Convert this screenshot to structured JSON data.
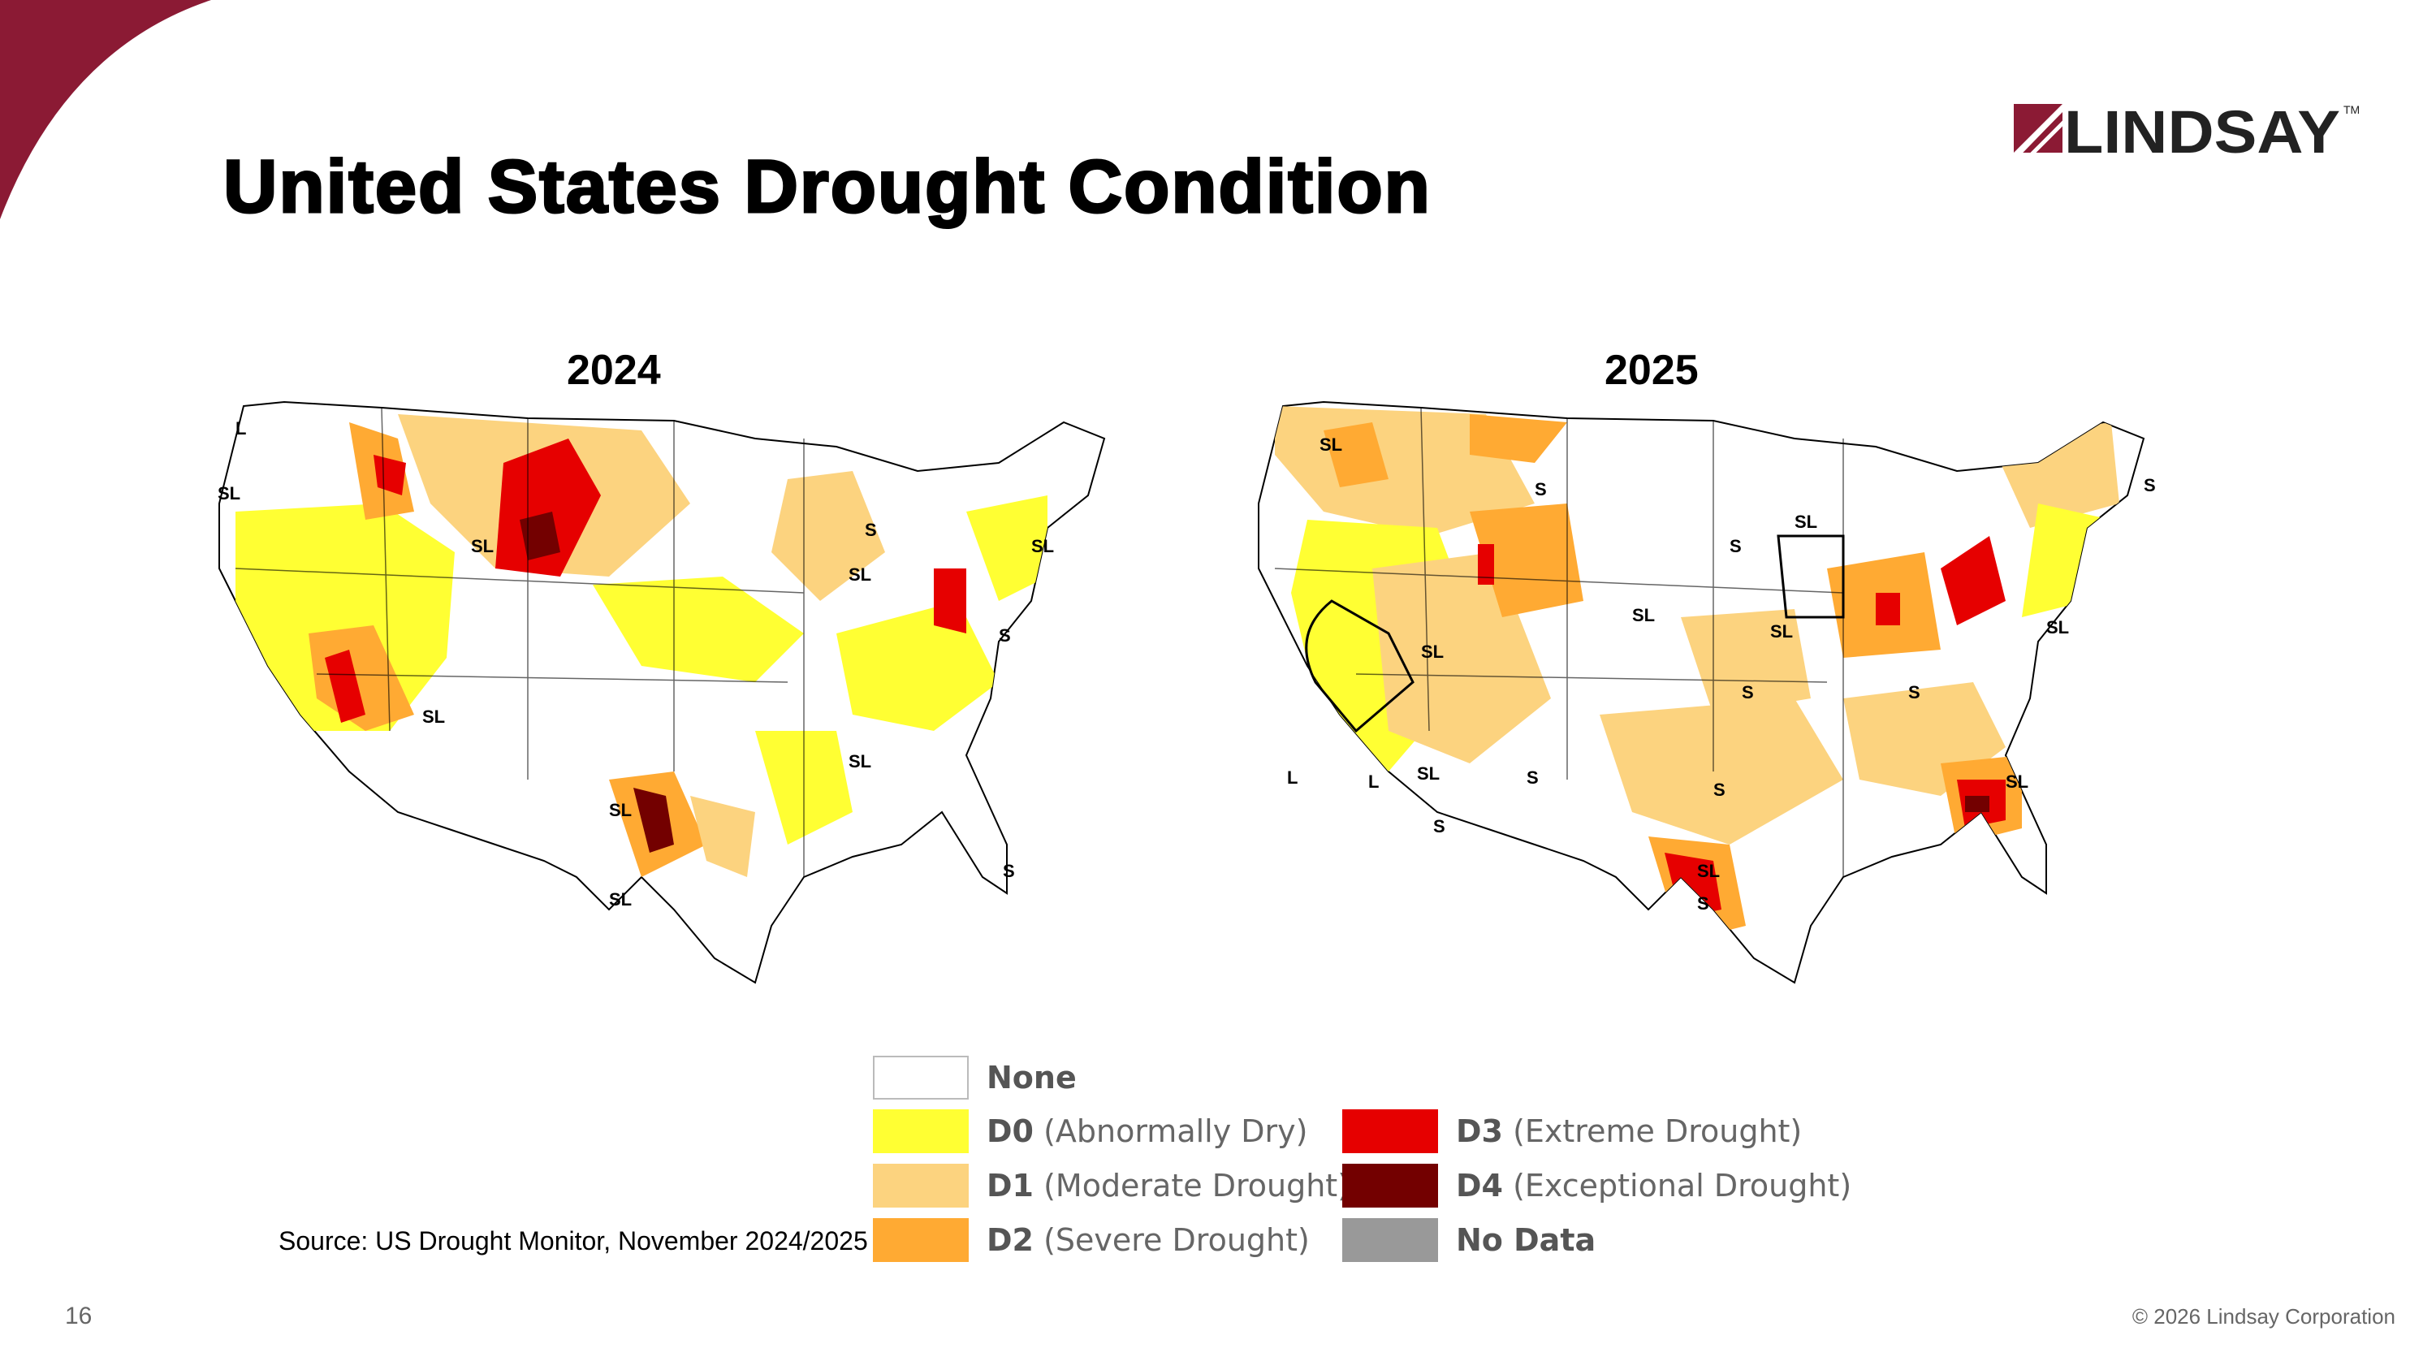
{
  "header": {
    "title": "United States Drought Condition",
    "logo_text": "LINDSAY",
    "logo_tm": "TM",
    "brand_color": "#8b1a34"
  },
  "maps": [
    {
      "year": "2024",
      "labels": [
        "L",
        "SL",
        "SL",
        "SL",
        "S",
        "SL",
        "SL",
        "S",
        "SL",
        "SL",
        "SL",
        "S"
      ]
    },
    {
      "year": "2025",
      "labels": [
        "SL",
        "S",
        "S",
        "SL",
        "SL",
        "SL",
        "SL",
        "S",
        "S",
        "SL",
        "S",
        "L",
        "L",
        "SL",
        "S",
        "S",
        "S",
        "SL",
        "S",
        "SL"
      ]
    }
  ],
  "legend": {
    "items": [
      {
        "code": "None",
        "desc": "",
        "color": "#ffffff"
      },
      {
        "code": "D0",
        "desc": "(Abnormally Dry)",
        "color": "#ffff33"
      },
      {
        "code": "D1",
        "desc": "(Moderate Drought)",
        "color": "#fcd37f"
      },
      {
        "code": "D2",
        "desc": "(Severe Drought)",
        "color": "#ffaa33"
      },
      {
        "code": "D3",
        "desc": "(Extreme Drought)",
        "color": "#e60000"
      },
      {
        "code": "D4",
        "desc": "(Exceptional Drought)",
        "color": "#730000"
      },
      {
        "code": "No Data",
        "desc": "",
        "color": "#999999"
      }
    ]
  },
  "footer": {
    "source": "Source: US Drought Monitor, November 2024/2025",
    "page_number": "16",
    "copyright": "© 2026 Lindsay Corporation"
  }
}
